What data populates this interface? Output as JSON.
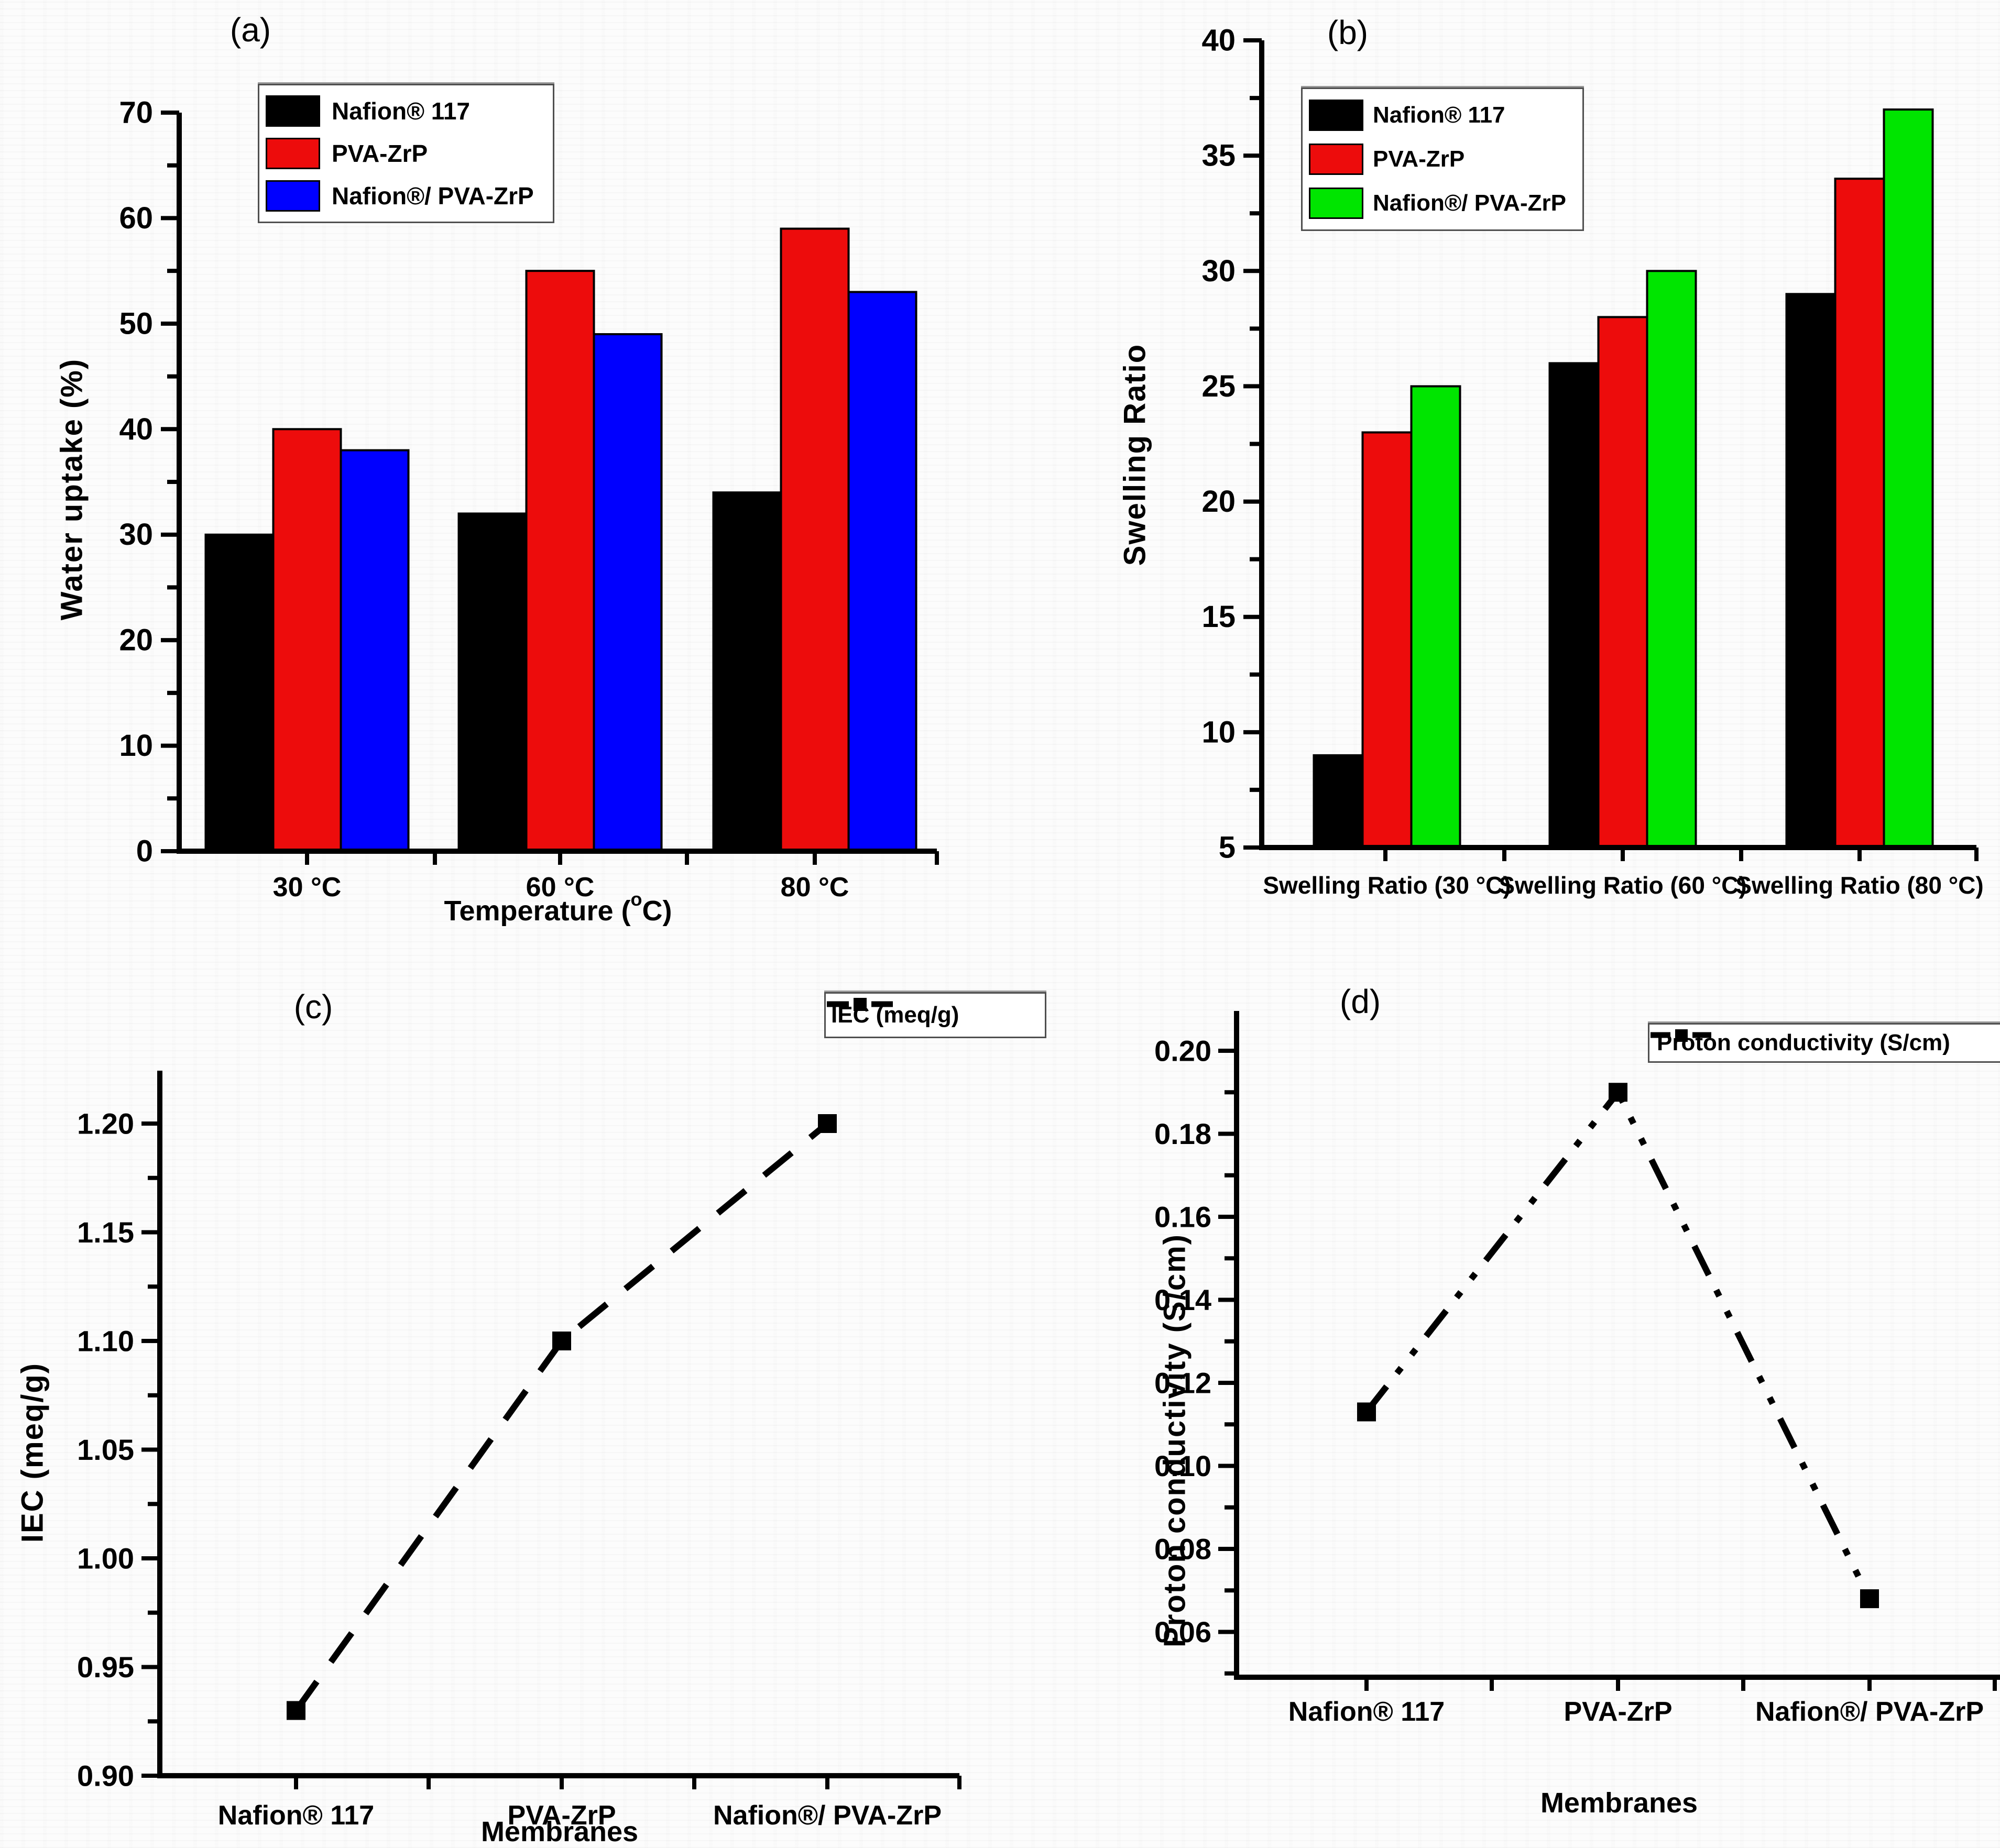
{
  "chart_data": [
    {
      "id": "a",
      "type": "bar",
      "title": "(a)",
      "ylabel": "Water uptake (%)",
      "xlabel": "Temperature (°C)",
      "xlabel_prefix": "Temperature (",
      "xlabel_sup": "o",
      "xlabel_suffix": "C)",
      "categories": [
        "30 °C",
        "60 °C",
        "80 °C"
      ],
      "series": [
        {
          "name": "Nafion® 117",
          "color": "#000000",
          "values": [
            30,
            32,
            34
          ]
        },
        {
          "name": "PVA-ZrP",
          "color": "#ED0C0C",
          "values": [
            40,
            55,
            59
          ]
        },
        {
          "name": "Nafion®/ PVA-ZrP",
          "color": "#0000FF",
          "values": [
            38,
            49,
            53
          ]
        }
      ],
      "ylim": [
        0,
        70
      ],
      "yticks": [
        0,
        10,
        20,
        30,
        40,
        50,
        60,
        70
      ],
      "ytick_labels": [
        "0",
        "10",
        "20",
        "30",
        "40",
        "50",
        "60",
        "70"
      ],
      "legend_position": "upper-left-inside",
      "grid": false
    },
    {
      "id": "b",
      "type": "bar",
      "title": "(b)",
      "ylabel": "Swelling Ratio",
      "xlabel": "",
      "categories": [
        "Swelling Ratio (30 °C)",
        "Swelling Ratio (60 °C)",
        "Swelling Ratio (80 °C)"
      ],
      "series": [
        {
          "name": "Nafion® 117",
          "color": "#000000",
          "values": [
            9,
            26,
            29
          ]
        },
        {
          "name": "PVA-ZrP",
          "color": "#ED0C0C",
          "values": [
            23,
            28,
            34
          ]
        },
        {
          "name": "Nafion®/ PVA-ZrP",
          "color": "#00E500",
          "values": [
            25,
            30,
            37
          ]
        }
      ],
      "ylim": [
        5,
        40
      ],
      "yticks": [
        5,
        10,
        15,
        20,
        25,
        30,
        35,
        40
      ],
      "ytick_labels": [
        "5",
        "10",
        "15",
        "20",
        "25",
        "30",
        "35",
        "40"
      ],
      "legend_position": "upper-left-inside",
      "grid": false
    },
    {
      "id": "c",
      "type": "line",
      "title": "(c)",
      "legend_label": "IEC (meq/g)",
      "ylabel": "IEC (meq/g)",
      "xlabel": "Membranes",
      "categories": [
        "Nafion® 117",
        "PVA-ZrP",
        "Nafion®/ PVA-ZrP"
      ],
      "values": [
        0.93,
        1.1,
        1.2
      ],
      "ylim": [
        0.9,
        1.225
      ],
      "yticks": [
        0.9,
        0.95,
        1.0,
        1.05,
        1.1,
        1.15,
        1.2
      ],
      "ytick_labels": [
        "0.90",
        "0.95",
        "1.00",
        "1.05",
        "1.10",
        "1.15",
        "1.20"
      ],
      "line_style": "dashed",
      "line_color": "#000000",
      "marker": "square",
      "legend_position": "upper-right",
      "grid": false
    },
    {
      "id": "d",
      "type": "line",
      "title": "(d)",
      "legend_label": "Proton conductivity (S/cm)",
      "ylabel": "Proton conductivity (S/cm)",
      "xlabel": "Membranes",
      "categories": [
        "Nafion® 117",
        "PVA-ZrP",
        "Nafion®/ PVA-ZrP"
      ],
      "values": [
        0.113,
        0.19,
        0.068
      ],
      "ylim": [
        0.05,
        0.21
      ],
      "yticks": [
        0.06,
        0.08,
        0.1,
        0.12,
        0.14,
        0.16,
        0.18,
        0.2
      ],
      "ytick_labels": [
        "0.06",
        "0.08",
        "0.10",
        "0.12",
        "0.14",
        "0.16",
        "0.18",
        "0.20"
      ],
      "line_style": "dash-dot-dot",
      "line_color": "#000000",
      "marker": "square",
      "legend_position": "upper-right-clipped",
      "grid": false
    }
  ]
}
